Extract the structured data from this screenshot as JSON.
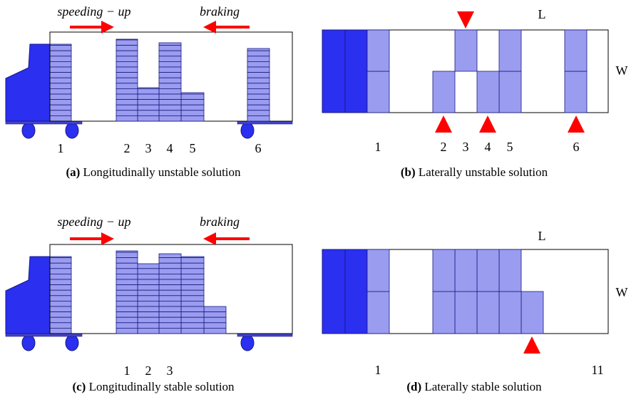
{
  "panels": [
    {
      "tag": "(a)",
      "caption": "Longitudinally unstable solution",
      "arrow_labels": [
        "speeding − up",
        "braking"
      ],
      "positions": [
        "1",
        "2",
        "3",
        "4",
        "5",
        "6"
      ]
    },
    {
      "tag": "(b)",
      "caption": "Laterally unstable solution",
      "length_label": "L",
      "width_label": "W",
      "positions": [
        "1",
        "2",
        "3",
        "4",
        "5",
        "6"
      ]
    },
    {
      "tag": "(c)",
      "caption": "Longitudinally stable solution",
      "arrow_labels": [
        "speeding − up",
        "braking"
      ],
      "positions": [
        "1",
        "2",
        "3"
      ]
    },
    {
      "tag": "(d)",
      "caption": "Laterally stable solution",
      "length_label": "L",
      "width_label": "W",
      "positions": [
        "1",
        "11"
      ]
    }
  ]
}
